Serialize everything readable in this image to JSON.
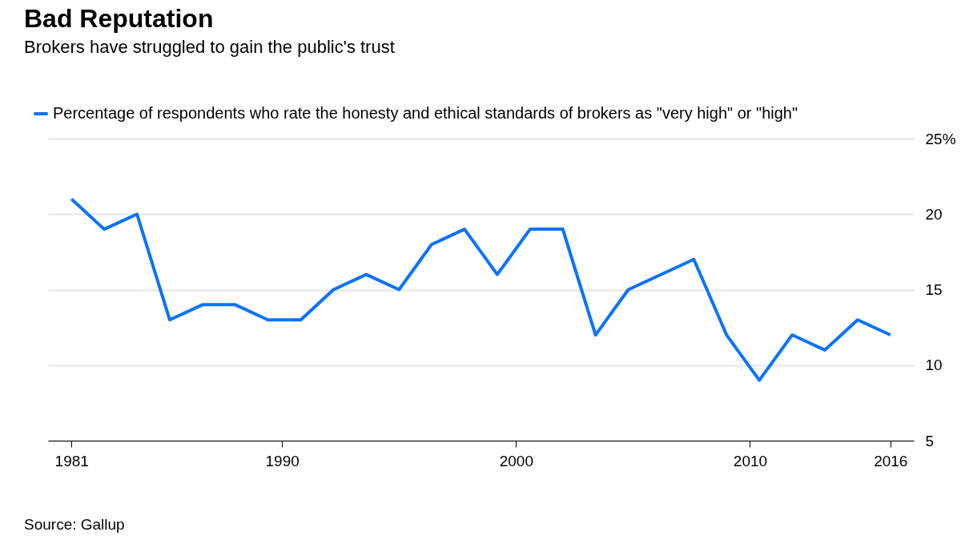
{
  "chart_data": {
    "type": "line",
    "title": "Bad Reputation",
    "subtitle": "Brokers have struggled to gain the public's trust",
    "x": [
      1981,
      1982.4,
      1983.8,
      1985.2,
      1986.6,
      1988,
      1989.4,
      1990.8,
      1992.2,
      1993.6,
      1995,
      1996.4,
      1997.8,
      1999.2,
      2000.6,
      2002,
      2003.4,
      2004.8,
      2007.6,
      2009,
      2010.4,
      2011.8,
      2013.2,
      2014.6,
      2016
    ],
    "series": [
      {
        "name": "Percentage of respondents who rate the honesty and ethical standards of brokers as \"very high\" or \"high\"",
        "color": "#0a72ff",
        "values": [
          21,
          19,
          20,
          13,
          14,
          14,
          13,
          13,
          15,
          16,
          15,
          18,
          19,
          16,
          19,
          19,
          12,
          15,
          17,
          12,
          9,
          12,
          11,
          13,
          12
        ]
      }
    ],
    "xlim": [
      1980,
      2017
    ],
    "xticks": [
      1981,
      1990,
      2000,
      2010,
      2016
    ],
    "ylim": [
      5,
      25
    ],
    "yticks": [
      5,
      10,
      15,
      20,
      {
        "value": 25,
        "label": "25%"
      }
    ],
    "grid": "y",
    "legend": "top left",
    "marker": "none",
    "line_style": "solid",
    "annotations": [
      "Source: Gallup"
    ]
  }
}
